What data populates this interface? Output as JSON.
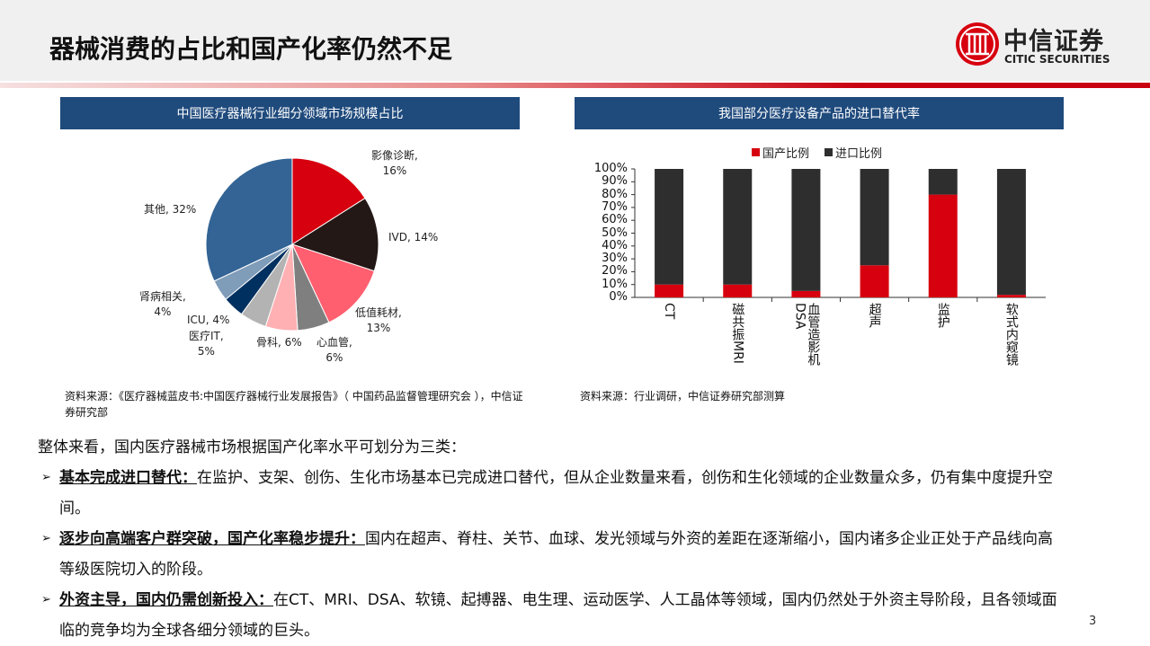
{
  "header": {
    "title": "器械消费的占比和国产化率仍然不足",
    "logo_cn": "中信证券",
    "logo_en": "CITIC SECURITIES"
  },
  "left_panel": {
    "title": "中国医疗器械行业细分领域市场规模占比",
    "source": "资料来源：《医疗器械蓝皮书:中国医疗器械行业发展报告》（  中国药品监督管理研究会 ），中信证券研究部"
  },
  "right_panel": {
    "title": "我国部分医疗设备产品的进口替代率",
    "source": "资料来源：行业调研，中信证券研究部测算"
  },
  "chart_data": [
    {
      "type": "pie",
      "title": "中国医疗器械行业细分领域市场规模占比",
      "slices": [
        {
          "label": "影像诊断",
          "value": 16,
          "text": "影像诊断,",
          "pct": "16%",
          "color": "#d7000f"
        },
        {
          "label": "IVD",
          "value": 14,
          "text": "IVD, 14%",
          "pct": "",
          "color": "#231815"
        },
        {
          "label": "低值耗材",
          "value": 13,
          "text": "低值耗材,",
          "pct": "13%",
          "color": "#ff5f6f"
        },
        {
          "label": "心血管",
          "value": 6,
          "text": "心血管,",
          "pct": "6%",
          "color": "#7f7f7f"
        },
        {
          "label": "骨科",
          "value": 6,
          "text": "骨科, 6%",
          "pct": "",
          "color": "#ffb0b3"
        },
        {
          "label": "医疗IT",
          "value": 5,
          "text": "医疗IT,",
          "pct": "5%",
          "color": "#b3b3b3"
        },
        {
          "label": "ICU",
          "value": 4,
          "text": "ICU, 4%",
          "pct": "",
          "color": "#00305f"
        },
        {
          "label": "肾病相关",
          "value": 4,
          "text": "肾病相关,",
          "pct": "4%",
          "color": "#7f9cb9"
        },
        {
          "label": "其他",
          "value": 32,
          "text": "其他, 32%",
          "pct": "",
          "color": "#336495"
        }
      ]
    },
    {
      "type": "bar",
      "stacked": true,
      "title": "我国部分医疗设备产品的进口替代率",
      "categories": [
        "CT",
        "磁共振MRI",
        "血管造影机DSA",
        "超声",
        "监护",
        "软式内窥镜"
      ],
      "series": [
        {
          "name": "国产比例",
          "color": "#d7000f",
          "values": [
            10,
            10,
            5,
            25,
            80,
            2
          ]
        },
        {
          "name": "进口比例",
          "color": "#2e2e2e",
          "values": [
            90,
            90,
            95,
            75,
            20,
            98
          ]
        }
      ],
      "yticks": [
        "100%",
        "90%",
        "80%",
        "70%",
        "60%",
        "50%",
        "40%",
        "30%",
        "20%",
        "10%",
        "0%"
      ],
      "ylim": [
        0,
        100
      ],
      "legend": "top"
    }
  ],
  "body": {
    "intro": "整体来看，国内医疗器械市场根据国产化率水平可划分为三类：",
    "bullets": [
      {
        "head": "基本完成进口替代：",
        "text": "在监护、支架、创伤、生化市场基本已完成进口替代，但从企业数量来看，创伤和生化领域的企业数量众多，仍有集中度提升空间。"
      },
      {
        "head": "逐步向高端客户群突破，国产化率稳步提升：",
        "text": "国内在超声、脊柱、关节、血球、发光领域与外资的差距在逐渐缩小，国内诸多企业正处于产品线向高等级医院切入的阶段。"
      },
      {
        "head": "外资主导，国内仍需创新投入：",
        "text": "在CT、MRI、DSA、软镜、起搏器、电生理、运动医学、人工晶体等领域，国内仍然处于外资主导阶段，且各领域面临的竞争均为全球各细分领域的巨头。"
      }
    ]
  },
  "page_number": "3"
}
